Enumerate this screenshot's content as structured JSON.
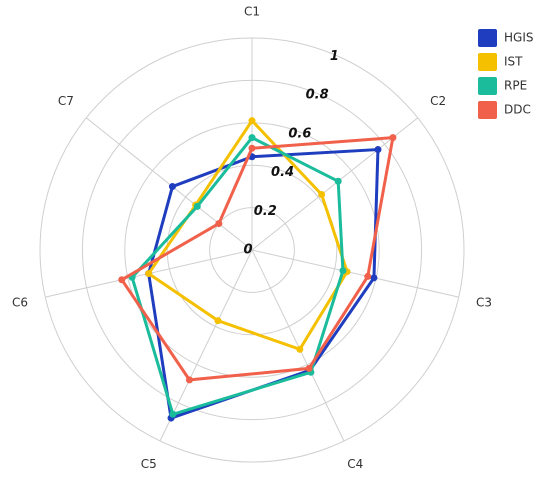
{
  "chart_data": {
    "type": "radar",
    "categories": [
      "C1",
      "C2",
      "C3",
      "C4",
      "C5",
      "C6",
      "C7"
    ],
    "series": [
      {
        "name": "HGIS",
        "color": "#1f3dbf",
        "values": [
          0.44,
          0.76,
          0.59,
          0.63,
          0.88,
          0.5,
          0.48
        ]
      },
      {
        "name": "IST",
        "color": "#f5c000",
        "values": [
          0.61,
          0.42,
          0.46,
          0.52,
          0.37,
          0.5,
          0.34
        ]
      },
      {
        "name": "RPE",
        "color": "#1abc9c",
        "values": [
          0.53,
          0.52,
          0.44,
          0.64,
          0.86,
          0.58,
          0.33
        ]
      },
      {
        "name": "DDC",
        "color": "#f0604a",
        "values": [
          0.48,
          0.85,
          0.56,
          0.62,
          0.68,
          0.63,
          0.2
        ]
      }
    ],
    "rlim": [
      0,
      1
    ],
    "rticks": [
      0,
      0.2,
      0.4,
      0.6,
      0.8,
      1
    ],
    "grid": true,
    "legend": "top-right"
  }
}
